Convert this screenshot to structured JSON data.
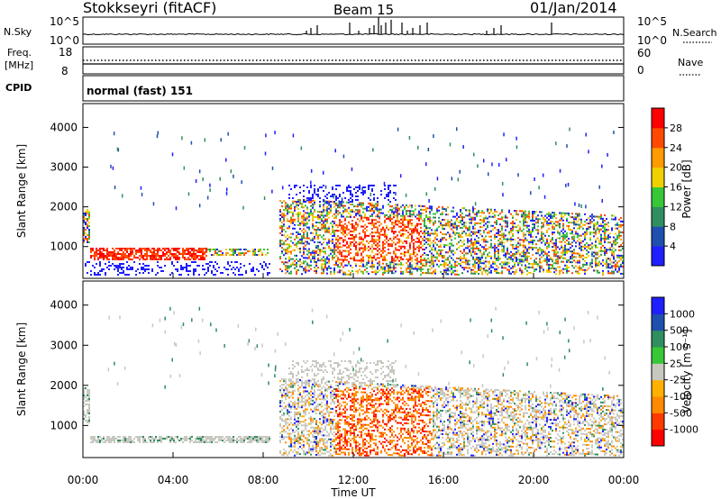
{
  "header": {
    "station": "Stokkseyri (fitACF)",
    "beam": "Beam 15",
    "date": "01/Jan/2014"
  },
  "strips": {
    "nsky": {
      "left_label": "N.Sky",
      "right_label": "N.Search",
      "left_ticks": [
        "10^5",
        "10^0"
      ],
      "right_ticks": [
        "10^5",
        "10^0"
      ]
    },
    "freq": {
      "left_label_1": "Freq.",
      "left_label_2": "[MHz]",
      "right_label": "Nave",
      "left_ticks": [
        "18",
        "8"
      ],
      "right_ticks": [
        "60",
        "0"
      ]
    },
    "cpid": {
      "label": "CPID",
      "text": "normal (fast) 151"
    }
  },
  "chart_data": [
    {
      "type": "heatmap",
      "name": "power",
      "ylabel": "Slant Range [km]",
      "y_ticks": [
        "1000",
        "2000",
        "3000",
        "4000"
      ],
      "ylim": [
        200,
        4600
      ],
      "colorbar_label": "Power [dB]",
      "colorbar_ticks": [
        "4",
        "8",
        "12",
        "16",
        "20",
        "24",
        "28"
      ],
      "colors": [
        "#1f1fff",
        "#1f4faf",
        "#2f8f5f",
        "#37c837",
        "#f0d000",
        "#ff9a00",
        "#ff4a00",
        "#ff0000"
      ]
    },
    {
      "type": "heatmap",
      "name": "velocity",
      "ylabel": "Slant Range [km]",
      "y_ticks": [
        "1000",
        "2000",
        "3000",
        "4000"
      ],
      "ylim": [
        200,
        4600
      ],
      "colorbar_label": "Velocity [m s⁻¹]",
      "colorbar_ticks": [
        "1000",
        "500",
        "100",
        "25",
        "-25",
        "-100",
        "-500",
        "-1000"
      ],
      "colors": [
        "#1f1fff",
        "#1f4faf",
        "#2f8f5f",
        "#37c837",
        "#c8c8c0",
        "#ffb000",
        "#ff8a00",
        "#ff3a00",
        "#ff0000"
      ]
    }
  ],
  "xaxis": {
    "label": "Time UT",
    "ticks": [
      "00:00",
      "04:00",
      "08:00",
      "12:00",
      "16:00",
      "20:00",
      "00:00"
    ]
  }
}
